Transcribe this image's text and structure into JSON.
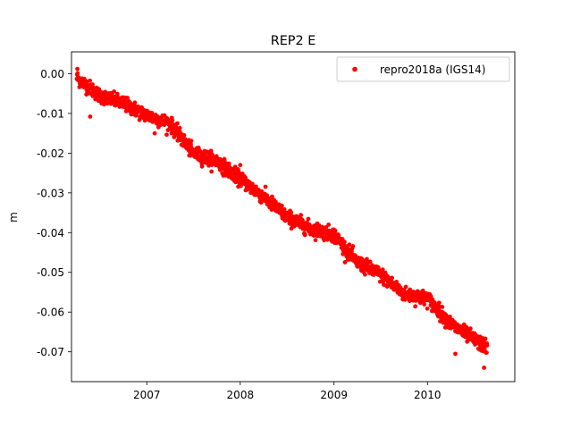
{
  "chart_data": {
    "type": "scatter",
    "title": "REP2 E",
    "xlabel": "",
    "ylabel": "m",
    "x_range": [
      "2006-03-13",
      "2010-12-08"
    ],
    "ylim": [
      -0.0775,
      0.0055
    ],
    "x_tick_labels": [
      "2007",
      "2008",
      "2009",
      "2010"
    ],
    "x_ticks": [
      "2007-01-01",
      "2008-01-01",
      "2009-01-01",
      "2010-01-01"
    ],
    "y_tick_labels": [
      "0.00",
      "-0.01",
      "-0.02",
      "-0.03",
      "-0.04",
      "-0.05",
      "-0.06",
      "-0.07"
    ],
    "y_ticks": [
      0.0,
      -0.01,
      -0.02,
      -0.03,
      -0.04,
      -0.05,
      -0.06,
      -0.07
    ],
    "grid": false,
    "legend_position": "top-right",
    "series": [
      {
        "name": "repro2018a (IGS14)",
        "color": "#ff0000",
        "marker": "circle",
        "x_start": "2006-04-03",
        "x_end": "2010-08-22",
        "trend": [
          [
            "2006-04-03",
            -0.001
          ],
          [
            "2006-07-01",
            -0.0055
          ],
          [
            "2006-10-01",
            -0.0075
          ],
          [
            "2007-01-01",
            -0.0105
          ],
          [
            "2007-04-01",
            -0.0125
          ],
          [
            "2007-07-01",
            -0.02
          ],
          [
            "2007-10-01",
            -0.022
          ],
          [
            "2008-01-01",
            -0.0265
          ],
          [
            "2008-04-01",
            -0.031
          ],
          [
            "2008-07-01",
            -0.036
          ],
          [
            "2008-10-01",
            -0.039
          ],
          [
            "2009-01-01",
            -0.0405
          ],
          [
            "2009-04-01",
            -0.0475
          ],
          [
            "2009-07-01",
            -0.0505
          ],
          [
            "2009-10-01",
            -0.0555
          ],
          [
            "2010-01-01",
            -0.0565
          ],
          [
            "2010-04-01",
            -0.063
          ],
          [
            "2010-08-22",
            -0.069
          ]
        ],
        "noise_sd": 0.0009,
        "point_count": 1600,
        "outliers": [
          [
            "2006-05-25",
            -0.0108
          ],
          [
            "2007-02-01",
            -0.015
          ],
          [
            "2010-04-20",
            -0.0705
          ],
          [
            "2010-08-10",
            -0.074
          ],
          [
            "2006-04-05",
            0.0012
          ],
          [
            "2008-01-01",
            -0.023
          ]
        ]
      }
    ]
  }
}
